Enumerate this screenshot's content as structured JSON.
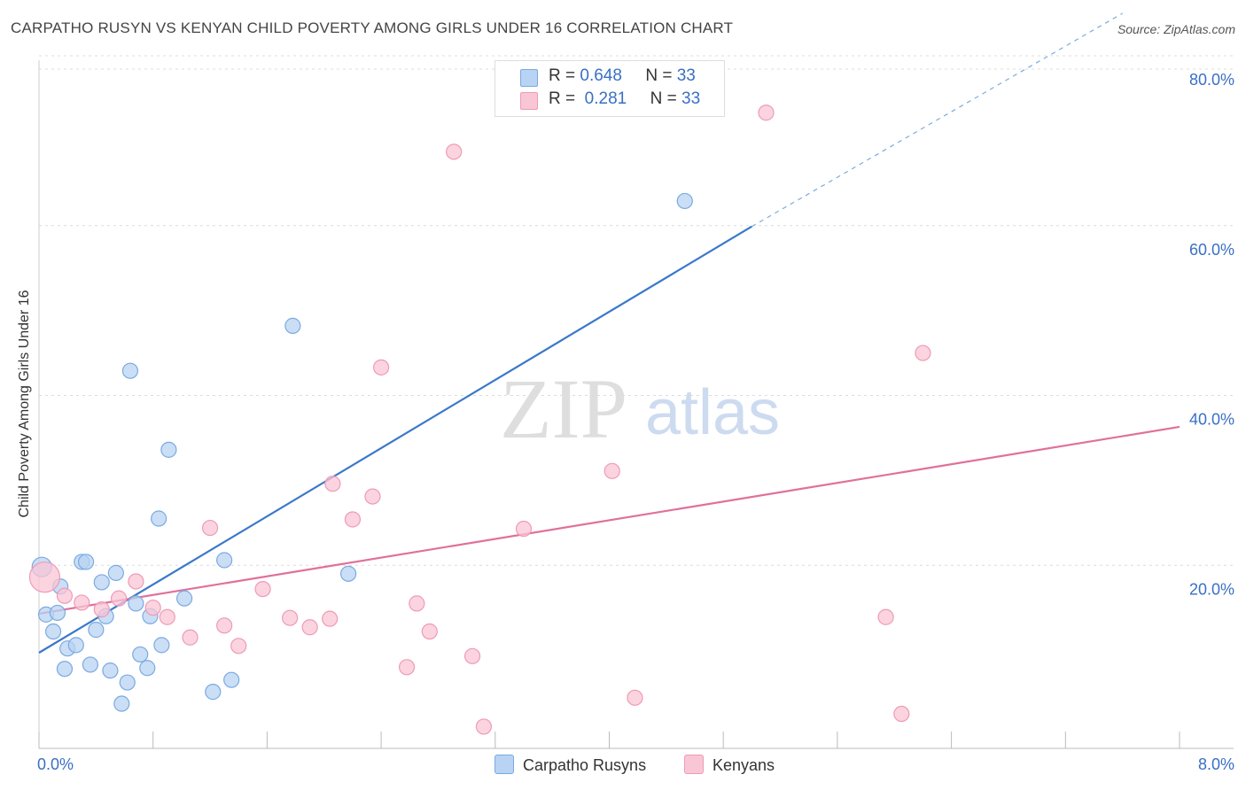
{
  "header": {
    "title": "CARPATHO RUSYN VS KENYAN CHILD POVERTY AMONG GIRLS UNDER 16 CORRELATION CHART",
    "source": "Source: ZipAtlas.com"
  },
  "colors": {
    "blue_fill": "#b8d3f3",
    "blue_stroke": "#7aaae0",
    "blue_line": "#3a78c9",
    "pink_fill": "#f9c6d6",
    "pink_stroke": "#ef9ab6",
    "pink_line": "#e0709a",
    "axis_label": "#3a6fc4",
    "grid": "#dcdcdc"
  },
  "legend": {
    "rows": [
      {
        "r_label": "R =",
        "r_value": "0.648",
        "n_label": "N =",
        "n_value": "33"
      },
      {
        "r_label": "R =",
        "r_value": "0.281",
        "n_label": "N =",
        "n_value": "33"
      }
    ]
  },
  "watermark": {
    "zip": "ZIP",
    "atlas": "atlas"
  },
  "chart_data": {
    "type": "scatter",
    "title": "CARPATHO RUSYN VS KENYAN CHILD POVERTY AMONG GIRLS UNDER 16 CORRELATION CHART",
    "xlabel": "",
    "ylabel": "Child Poverty Among Girls Under 16",
    "xlim": [
      0,
      8
    ],
    "ylim": [
      0,
      80
    ],
    "x_tick_labels": [
      "0.0%",
      "8.0%"
    ],
    "y_ticks": [
      20,
      40,
      60,
      80
    ],
    "y_tick_labels": [
      "20.0%",
      "40.0%",
      "60.0%",
      "80.0%"
    ],
    "grid": true,
    "legend_position": "top-center",
    "series": [
      {
        "name": "Carpatho Rusyns",
        "color": "#b8d3f3",
        "r": 0.648,
        "n": 33,
        "trend": {
          "x0": 0,
          "y0": 9.7,
          "x1": 5.0,
          "y1": 59.9,
          "dash_x1": 7.6,
          "dash_y1": 85
        },
        "points": [
          [
            0.02,
            19.8
          ],
          [
            0.05,
            14.2
          ],
          [
            0.1,
            12.2
          ],
          [
            0.13,
            14.4
          ],
          [
            0.15,
            17.5
          ],
          [
            0.18,
            7.8
          ],
          [
            0.2,
            10.2
          ],
          [
            0.26,
            10.6
          ],
          [
            0.3,
            20.4
          ],
          [
            0.33,
            20.4
          ],
          [
            0.36,
            8.3
          ],
          [
            0.4,
            12.4
          ],
          [
            0.44,
            18.0
          ],
          [
            0.47,
            14.0
          ],
          [
            0.5,
            7.6
          ],
          [
            0.54,
            19.1
          ],
          [
            0.58,
            3.7
          ],
          [
            0.62,
            6.2
          ],
          [
            0.64,
            42.9
          ],
          [
            0.68,
            15.5
          ],
          [
            0.71,
            9.5
          ],
          [
            0.76,
            7.9
          ],
          [
            0.78,
            14.0
          ],
          [
            0.84,
            25.5
          ],
          [
            0.86,
            10.6
          ],
          [
            0.91,
            33.6
          ],
          [
            1.02,
            16.1
          ],
          [
            1.22,
            5.1
          ],
          [
            1.3,
            20.6
          ],
          [
            1.35,
            6.5
          ],
          [
            1.78,
            48.2
          ],
          [
            2.17,
            19.0
          ],
          [
            4.53,
            62.9
          ]
        ]
      },
      {
        "name": "Kenyans",
        "color": "#f9c6d6",
        "r": 0.281,
        "n": 33,
        "trend": {
          "x0": 0,
          "y0": 14.3,
          "x1": 8.0,
          "y1": 36.3
        },
        "points": [
          [
            0.04,
            18.6
          ],
          [
            0.18,
            16.4
          ],
          [
            0.3,
            15.6
          ],
          [
            0.44,
            14.8
          ],
          [
            0.56,
            16.1
          ],
          [
            0.68,
            18.1
          ],
          [
            0.8,
            15.0
          ],
          [
            0.9,
            13.9
          ],
          [
            1.06,
            11.5
          ],
          [
            1.2,
            24.4
          ],
          [
            1.3,
            12.9
          ],
          [
            1.4,
            10.5
          ],
          [
            1.57,
            17.2
          ],
          [
            1.76,
            13.8
          ],
          [
            1.9,
            12.7
          ],
          [
            2.04,
            13.7
          ],
          [
            2.06,
            29.6
          ],
          [
            2.2,
            25.4
          ],
          [
            2.34,
            28.1
          ],
          [
            2.4,
            43.3
          ],
          [
            2.58,
            8.0
          ],
          [
            2.65,
            15.5
          ],
          [
            2.74,
            12.2
          ],
          [
            2.91,
            68.7
          ],
          [
            3.04,
            9.3
          ],
          [
            3.12,
            1.0
          ],
          [
            3.4,
            24.3
          ],
          [
            4.02,
            31.1
          ],
          [
            4.18,
            4.4
          ],
          [
            5.1,
            73.3
          ],
          [
            5.94,
            13.9
          ],
          [
            6.05,
            2.5
          ],
          [
            6.2,
            45.0
          ]
        ]
      }
    ]
  }
}
